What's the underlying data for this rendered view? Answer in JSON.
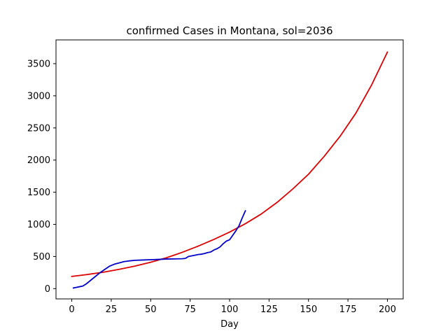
{
  "chart_data": {
    "type": "line",
    "title": "confirmed Cases in Montana, sol=2036",
    "xlabel": "Day",
    "ylabel": "",
    "xlim": [
      -10,
      210
    ],
    "ylim": [
      -160,
      3870
    ],
    "xticks": [
      0,
      25,
      50,
      75,
      100,
      125,
      150,
      175,
      200
    ],
    "yticks": [
      0,
      500,
      1000,
      1500,
      2000,
      2500,
      3000,
      3500
    ],
    "grid": false,
    "legend": "none",
    "series": [
      {
        "color": "#dd0000",
        "x": [
          0,
          10,
          20,
          30,
          40,
          50,
          60,
          70,
          80,
          90,
          100,
          110,
          120,
          130,
          140,
          150,
          160,
          170,
          180,
          190,
          200
        ],
        "y": [
          190,
          220,
          255,
          300,
          350,
          410,
          480,
          565,
          660,
          765,
          880,
          1010,
          1160,
          1340,
          1550,
          1780,
          2060,
          2370,
          2730,
          3170,
          3680
        ]
      },
      {
        "color": "#0000cc",
        "x": [
          1,
          3,
          5,
          7,
          9,
          12,
          15,
          18,
          21,
          24,
          27,
          30,
          33,
          36,
          40,
          45,
          50,
          55,
          60,
          65,
          70,
          72,
          74,
          76,
          78,
          80,
          82,
          84,
          86,
          88,
          90,
          92,
          94,
          96,
          98,
          100,
          102,
          104,
          106,
          108,
          110
        ],
        "y": [
          10,
          20,
          30,
          40,
          70,
          130,
          190,
          250,
          300,
          350,
          380,
          400,
          420,
          430,
          440,
          445,
          450,
          455,
          460,
          462,
          465,
          470,
          500,
          510,
          520,
          530,
          535,
          545,
          560,
          570,
          600,
          620,
          650,
          700,
          740,
          760,
          830,
          900,
          980,
          1100,
          1210
        ]
      }
    ]
  }
}
